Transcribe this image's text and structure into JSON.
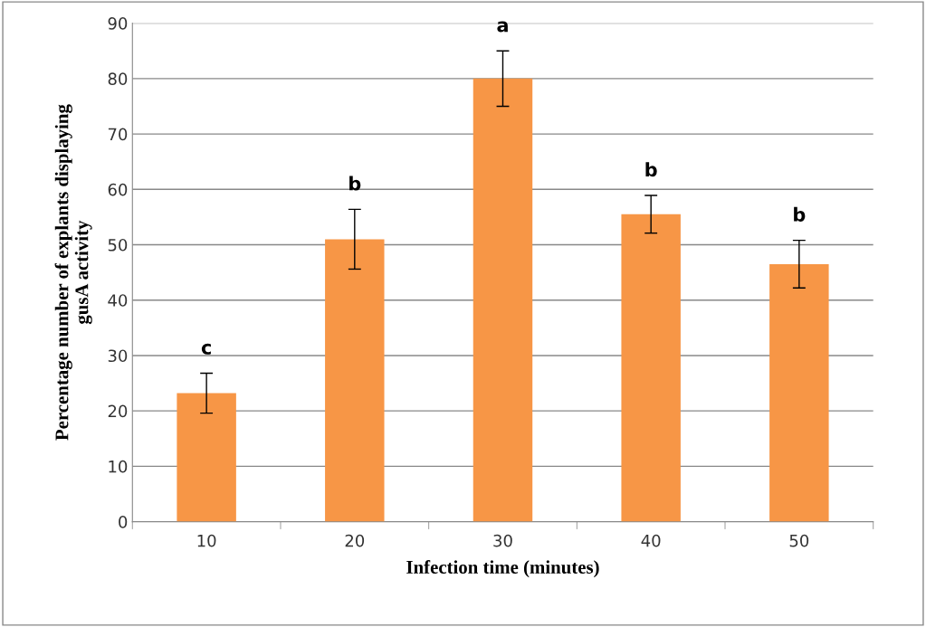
{
  "chart_data": {
    "type": "bar",
    "xlabel": "Infection time (minutes)",
    "ylabel": "Percentage number of explants displaying\ngusA activity",
    "categories": [
      "10",
      "20",
      "30",
      "40",
      "50"
    ],
    "values": [
      23.2,
      51.0,
      80.0,
      55.5,
      46.5
    ],
    "errors": [
      3.6,
      5.4,
      5.0,
      3.4,
      4.3
    ],
    "color": "#f79646",
    "ylim": [
      0,
      90
    ],
    "yticks": [
      0,
      10,
      20,
      30,
      40,
      50,
      60,
      70,
      80,
      90
    ],
    "grid": "y",
    "legend": false,
    "annotations": [
      "c",
      "b",
      "a",
      "b",
      "b"
    ]
  }
}
